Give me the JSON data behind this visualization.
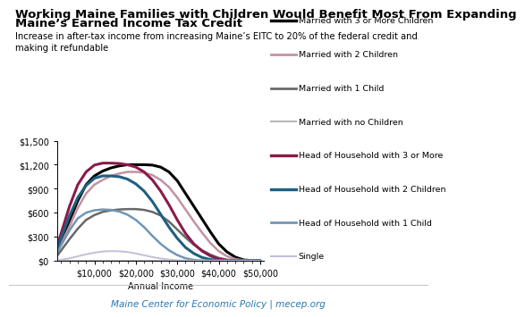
{
  "title1": "Working Maine Families with Children Would Benefit Most From Expanding",
  "title2": "Maine’s Earned Income Tax Credit",
  "subtitle": "Increase in after-tax income from increasing Maine’s EITC to 20% of the federal credit and\nmaking it refundable",
  "xlabel": "Annual Income",
  "footer": "Maine Center for Economic Policy | mecep.org",
  "x_values": [
    1000,
    4000,
    6000,
    8000,
    10000,
    12000,
    14000,
    16000,
    18000,
    20000,
    22000,
    24000,
    26000,
    28000,
    30000,
    32000,
    34000,
    36000,
    38000,
    40000,
    42000,
    44000,
    46000,
    48000,
    50000
  ],
  "series": [
    {
      "label": "Married with 3 or More Children",
      "color": "#000000",
      "lw": 2.2,
      "y": [
        120,
        500,
        750,
        950,
        1060,
        1120,
        1160,
        1185,
        1200,
        1200,
        1200,
        1195,
        1170,
        1110,
        1000,
        840,
        680,
        520,
        360,
        210,
        110,
        45,
        10,
        2,
        0
      ]
    },
    {
      "label": "Married with 2 Children",
      "color": "#c4929f",
      "lw": 1.8,
      "y": [
        100,
        430,
        660,
        840,
        950,
        1010,
        1060,
        1090,
        1110,
        1110,
        1100,
        1070,
        1010,
        920,
        790,
        640,
        490,
        350,
        220,
        120,
        55,
        20,
        5,
        1,
        0
      ]
    },
    {
      "label": "Married with 1 Child",
      "color": "#686868",
      "lw": 1.8,
      "y": [
        60,
        270,
        400,
        510,
        570,
        610,
        630,
        640,
        645,
        645,
        635,
        610,
        565,
        490,
        390,
        290,
        200,
        130,
        75,
        35,
        12,
        3,
        0,
        0,
        0
      ]
    },
    {
      "label": "Married with no Children",
      "color": "#b8b8b8",
      "lw": 1.4,
      "y": [
        0,
        0,
        0,
        0,
        0,
        0,
        0,
        0,
        0,
        0,
        0,
        0,
        0,
        0,
        0,
        0,
        0,
        0,
        0,
        0,
        0,
        0,
        0,
        0,
        0
      ]
    },
    {
      "label": "Head of Household with 3 or More",
      "color": "#8b1a4a",
      "lw": 2.2,
      "y": [
        180,
        680,
        950,
        1110,
        1195,
        1220,
        1220,
        1215,
        1200,
        1170,
        1110,
        1010,
        870,
        700,
        510,
        340,
        210,
        120,
        60,
        20,
        5,
        1,
        0,
        0,
        0
      ]
    },
    {
      "label": "Head of Household with 2 Children",
      "color": "#1e5f80",
      "lw": 2.2,
      "y": [
        150,
        560,
        790,
        940,
        1030,
        1060,
        1060,
        1050,
        1020,
        960,
        870,
        740,
        580,
        420,
        280,
        165,
        90,
        40,
        15,
        4,
        0,
        0,
        0,
        0,
        0
      ]
    },
    {
      "label": "Head of Household with 1 Child",
      "color": "#7096b4",
      "lw": 1.8,
      "y": [
        100,
        380,
        530,
        600,
        630,
        640,
        635,
        615,
        575,
        510,
        420,
        310,
        210,
        130,
        70,
        30,
        10,
        2,
        0,
        0,
        0,
        0,
        0,
        0,
        0
      ]
    },
    {
      "label": "Single",
      "color": "#c0c0d8",
      "lw": 1.4,
      "y": [
        2,
        30,
        55,
        80,
        100,
        115,
        120,
        118,
        108,
        90,
        68,
        45,
        28,
        14,
        6,
        2,
        0,
        0,
        0,
        0,
        0,
        0,
        0,
        0,
        0
      ]
    }
  ],
  "ylim": [
    0,
    1500
  ],
  "yticks": [
    0,
    300,
    600,
    900,
    1200,
    1500
  ],
  "ytick_labels": [
    "$0",
    "$300",
    "$600",
    "$900",
    "$1,200",
    "$1,500"
  ],
  "xticks": [
    10000,
    20000,
    30000,
    40000,
    50000
  ],
  "xtick_labels": [
    "$10,000",
    "$20,000",
    "$30,000",
    "$40,000",
    "$50,000"
  ],
  "bg_color": "#ffffff",
  "title_fontsize": 9.5,
  "subtitle_fontsize": 7.2,
  "axis_fontsize": 7.0,
  "legend_fontsize": 6.8,
  "footer_color": "#2778b0",
  "footer_fontsize": 7.5
}
